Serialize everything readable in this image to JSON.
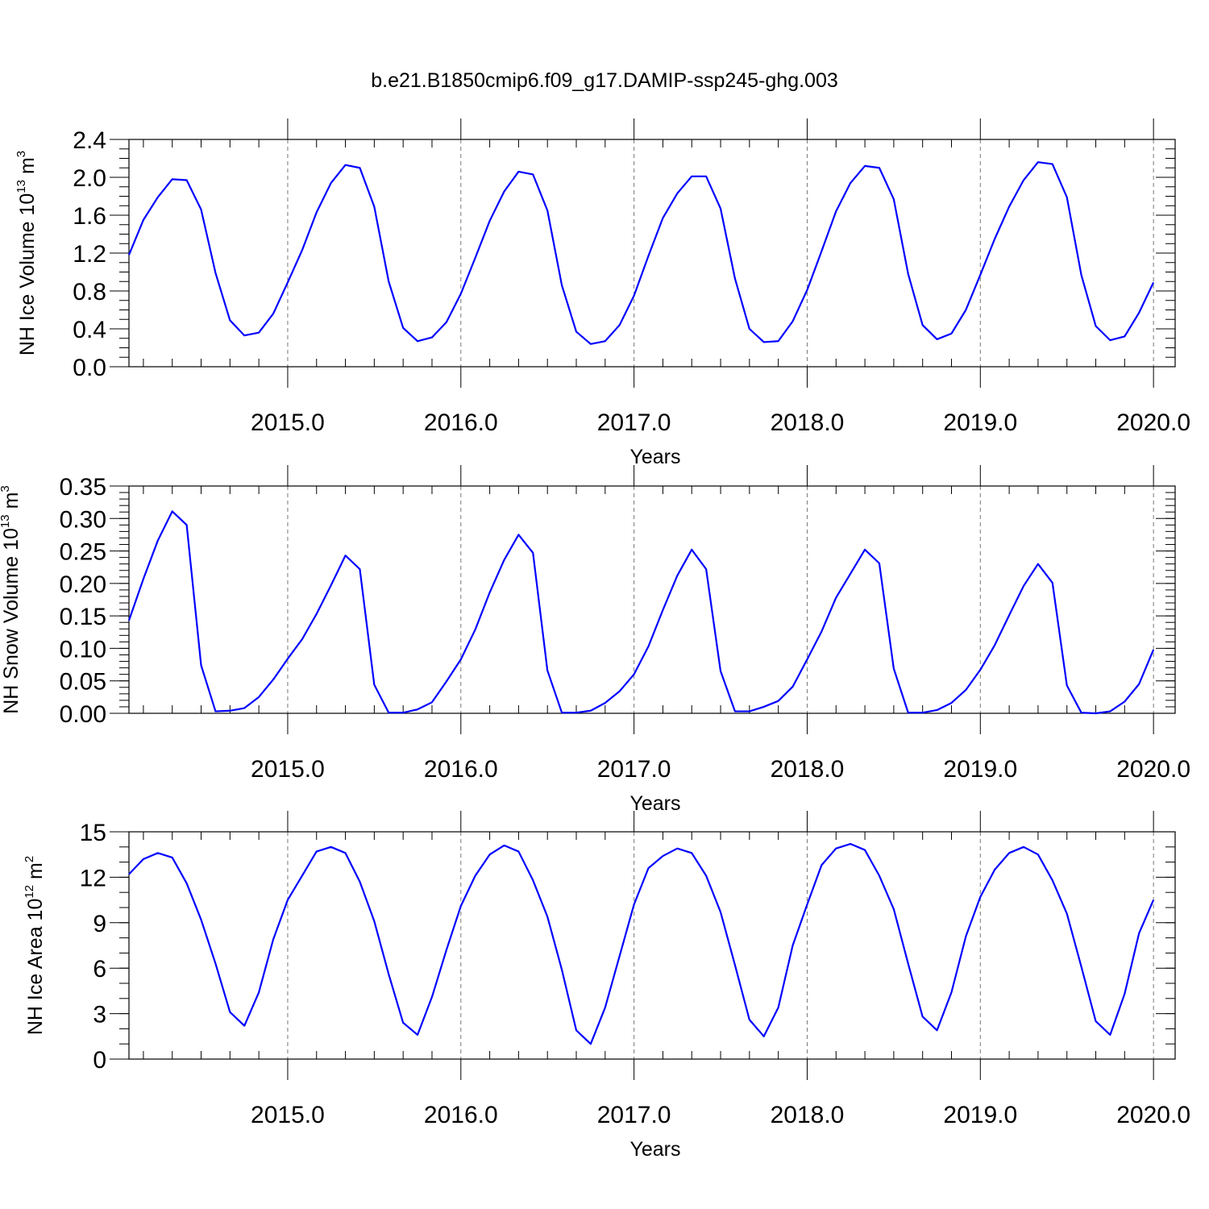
{
  "figure": {
    "title": "b.e21.B1850cmip6.f09_g17.DAMIP-ssp245-ghg.003",
    "line_color": "#0000ff",
    "grid_color": "#777777"
  },
  "chart_data": [
    {
      "type": "line",
      "title": "",
      "xlabel": "Years",
      "ylabel_text": "NH Ice Volume 10",
      "ylabel_exp": "13",
      "ylabel_unit": " m",
      "ylabel_unit_exp": "3",
      "xlim": [
        2014.0833,
        2020.125
      ],
      "ylim": [
        0.0,
        2.4
      ],
      "xticks": [
        2015.0,
        2016.0,
        2017.0,
        2018.0,
        2019.0,
        2020.0
      ],
      "xtick_labels": [
        "2015.0",
        "2016.0",
        "2017.0",
        "2018.0",
        "2019.0",
        "2020.0"
      ],
      "yticks": [
        0.0,
        0.4,
        0.8,
        1.2,
        1.6,
        2.0,
        2.4
      ],
      "ytick_labels": [
        "0.0",
        "0.4",
        "0.8",
        "1.2",
        "1.6",
        "2.0",
        "2.4"
      ],
      "yminor_step": 0.1,
      "grid": "vertical dashed at year ticks",
      "x_start": 2014.0833,
      "x_step": 0.08333,
      "series": [
        {
          "values": [
            1.18,
            1.55,
            1.79,
            1.98,
            1.97,
            1.66,
            0.99,
            0.49,
            0.33,
            0.36,
            0.56,
            0.89,
            1.23,
            1.63,
            1.94,
            2.13,
            2.1,
            1.69,
            0.9,
            0.41,
            0.27,
            0.31,
            0.47,
            0.77,
            1.15,
            1.54,
            1.85,
            2.06,
            2.03,
            1.65,
            0.86,
            0.37,
            0.24,
            0.27,
            0.44,
            0.75,
            1.17,
            1.57,
            1.83,
            2.01,
            2.01,
            1.67,
            0.93,
            0.4,
            0.26,
            0.27,
            0.48,
            0.81,
            1.22,
            1.64,
            1.94,
            2.12,
            2.1,
            1.77,
            0.98,
            0.44,
            0.29,
            0.35,
            0.6,
            0.97,
            1.35,
            1.69,
            1.97,
            2.16,
            2.14,
            1.79,
            0.97,
            0.43,
            0.28,
            0.32,
            0.57,
            0.89
          ]
        }
      ]
    },
    {
      "type": "line",
      "title": "",
      "xlabel": "Years",
      "ylabel_text": "NH Snow Volume 10",
      "ylabel_exp": "13",
      "ylabel_unit": " m",
      "ylabel_unit_exp": "3",
      "xlim": [
        2014.0833,
        2020.125
      ],
      "ylim": [
        0.0,
        0.35
      ],
      "xticks": [
        2015.0,
        2016.0,
        2017.0,
        2018.0,
        2019.0,
        2020.0
      ],
      "xtick_labels": [
        "2015.0",
        "2016.0",
        "2017.0",
        "2018.0",
        "2019.0",
        "2020.0"
      ],
      "yticks": [
        0.0,
        0.05,
        0.1,
        0.15,
        0.2,
        0.25,
        0.3,
        0.35
      ],
      "ytick_labels": [
        "0.00",
        "0.05",
        "0.10",
        "0.15",
        "0.20",
        "0.25",
        "0.30",
        "0.35"
      ],
      "yminor_step": 0.01,
      "grid": "vertical dashed at year ticks",
      "x_start": 2014.0833,
      "x_step": 0.08333,
      "series": [
        {
          "values": [
            0.143,
            0.207,
            0.266,
            0.311,
            0.29,
            0.074,
            0.003,
            0.004,
            0.008,
            0.025,
            0.052,
            0.084,
            0.114,
            0.153,
            0.197,
            0.243,
            0.222,
            0.044,
            0.001,
            0.001,
            0.006,
            0.017,
            0.049,
            0.083,
            0.129,
            0.186,
            0.236,
            0.275,
            0.247,
            0.066,
            0.001,
            0.001,
            0.004,
            0.016,
            0.034,
            0.06,
            0.103,
            0.159,
            0.212,
            0.252,
            0.222,
            0.065,
            0.003,
            0.003,
            0.01,
            0.019,
            0.041,
            0.083,
            0.126,
            0.178,
            0.215,
            0.252,
            0.231,
            0.069,
            0.001,
            0.001,
            0.005,
            0.016,
            0.036,
            0.067,
            0.105,
            0.151,
            0.196,
            0.23,
            0.201,
            0.043,
            0.001,
            0.0,
            0.003,
            0.018,
            0.045,
            0.098
          ]
        }
      ]
    },
    {
      "type": "line",
      "title": "",
      "xlabel": "Years",
      "ylabel_text": "NH Ice Area 10",
      "ylabel_exp": "12",
      "ylabel_unit": " m",
      "ylabel_unit_exp": "2",
      "xlim": [
        2014.0833,
        2020.125
      ],
      "ylim": [
        0,
        15
      ],
      "xticks": [
        2015.0,
        2016.0,
        2017.0,
        2018.0,
        2019.0,
        2020.0
      ],
      "xtick_labels": [
        "2015.0",
        "2016.0",
        "2017.0",
        "2018.0",
        "2019.0",
        "2020.0"
      ],
      "yticks": [
        0,
        3,
        6,
        9,
        12,
        15
      ],
      "ytick_labels": [
        "0",
        "3",
        "6",
        "9",
        "12",
        "15"
      ],
      "yminor_step": 1,
      "grid": "vertical dashed at year ticks",
      "x_start": 2014.0833,
      "x_step": 0.08333,
      "series": [
        {
          "values": [
            12.2,
            13.2,
            13.6,
            13.3,
            11.6,
            9.2,
            6.3,
            3.1,
            2.2,
            4.4,
            7.9,
            10.5,
            12.1,
            13.7,
            14.0,
            13.6,
            11.7,
            9.1,
            5.6,
            2.4,
            1.6,
            4.1,
            7.2,
            10.1,
            12.1,
            13.5,
            14.1,
            13.7,
            11.8,
            9.4,
            5.9,
            1.9,
            1.0,
            3.4,
            6.8,
            10.2,
            12.6,
            13.4,
            13.9,
            13.6,
            12.1,
            9.7,
            6.2,
            2.6,
            1.5,
            3.4,
            7.5,
            10.2,
            12.8,
            13.9,
            14.2,
            13.8,
            12.1,
            9.9,
            6.3,
            2.8,
            1.9,
            4.4,
            8.1,
            10.7,
            12.5,
            13.6,
            14.0,
            13.5,
            11.8,
            9.6,
            6.1,
            2.5,
            1.6,
            4.3,
            8.3,
            10.5
          ]
        }
      ]
    }
  ]
}
